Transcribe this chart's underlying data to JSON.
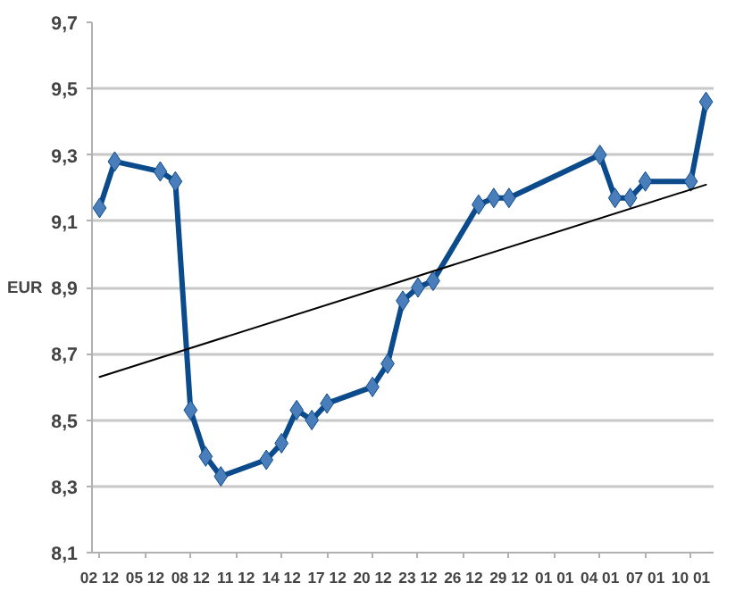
{
  "chart_data": {
    "type": "line",
    "ylabel": "EUR",
    "categories": [
      "02 12",
      null,
      null,
      "05 12",
      null,
      null,
      "08 12",
      null,
      null,
      "11 12",
      null,
      null,
      "14 12",
      null,
      null,
      "17 12",
      null,
      null,
      "20 12",
      null,
      null,
      "23 12",
      null,
      null,
      "26 12",
      null,
      null,
      "29 12",
      null,
      null,
      "01 01",
      null,
      null,
      "04 01",
      null,
      null,
      "07 01",
      null,
      null,
      "10 01",
      null
    ],
    "ylim": [
      8.1,
      9.7
    ],
    "yticks": [
      {
        "value": 8.1,
        "label": "8,1"
      },
      {
        "value": 8.3,
        "label": "8,3"
      },
      {
        "value": 8.5,
        "label": "8,5"
      },
      {
        "value": 8.7,
        "label": "8,7"
      },
      {
        "value": 8.9,
        "label": "8,9"
      },
      {
        "value": 9.1,
        "label": "9,1"
      },
      {
        "value": 9.3,
        "label": "9,3"
      },
      {
        "value": 9.5,
        "label": "9,5"
      },
      {
        "value": 9.7,
        "label": "9,7"
      }
    ],
    "grid": "y",
    "marker": "diamond",
    "line_style": "solid",
    "series": [
      {
        "color": "#0b4a8b",
        "values": [
          9.14,
          9.28,
          null,
          null,
          9.25,
          9.22,
          8.53,
          8.39,
          8.33,
          null,
          null,
          8.38,
          8.43,
          8.53,
          8.5,
          8.55,
          null,
          null,
          8.6,
          8.67,
          8.86,
          8.9,
          8.92,
          null,
          null,
          9.15,
          9.17,
          9.17,
          null,
          null,
          null,
          null,
          null,
          9.3,
          9.17,
          9.17,
          9.22,
          null,
          null,
          9.22,
          9.46
        ]
      },
      {
        "type": "line",
        "marker": "none",
        "color": "#000000",
        "values": [
          8.63,
          null,
          null,
          null,
          null,
          null,
          null,
          null,
          null,
          null,
          null,
          null,
          null,
          null,
          null,
          null,
          null,
          null,
          null,
          null,
          null,
          null,
          null,
          null,
          null,
          null,
          null,
          null,
          null,
          null,
          null,
          null,
          null,
          null,
          null,
          null,
          null,
          null,
          null,
          null,
          9.21
        ]
      }
    ]
  }
}
